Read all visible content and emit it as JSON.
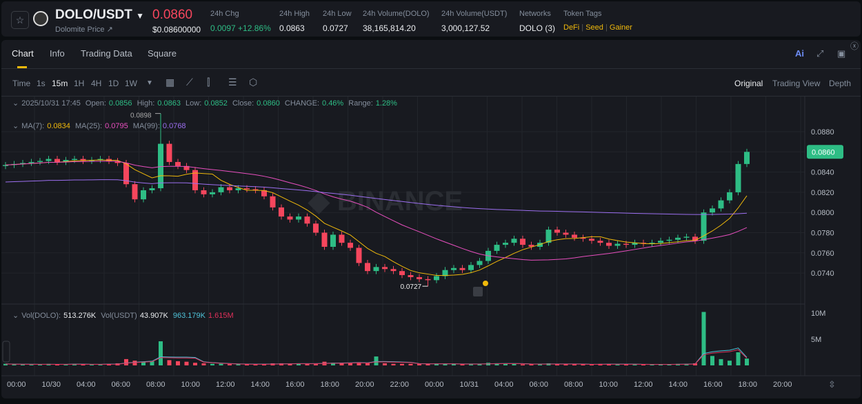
{
  "header": {
    "pair": "DOLO/USDT",
    "subtitle": "Dolomite Price ↗",
    "price": "0.0860",
    "price_usd": "$0.08600000",
    "stats": [
      {
        "label": "24h Chg",
        "value": "0.0097 +12.86%",
        "color": "g"
      },
      {
        "label": "24h High",
        "value": "0.0863"
      },
      {
        "label": "24h Low",
        "value": "0.0727"
      },
      {
        "label": "24h Volume(DOLO)",
        "value": "38,165,814.20"
      },
      {
        "label": "24h Volume(USDT)",
        "value": "3,000,127.52"
      },
      {
        "label": "Networks",
        "value": "DOLO (3)"
      }
    ],
    "tags_label": "Token Tags",
    "tags": [
      "DeFi",
      "Seed",
      "Gainer"
    ]
  },
  "tabs": [
    "Chart",
    "Info",
    "Trading Data",
    "Square"
  ],
  "toolbar": {
    "intervals": [
      "Time",
      "1s",
      "15m",
      "1H",
      "4H",
      "1D",
      "1W"
    ],
    "active": "15m",
    "views": [
      "Original",
      "Trading View",
      "Depth"
    ],
    "ai": "Ai"
  },
  "ohlc": {
    "date": "2025/10/31 17:45",
    "open_l": "Open:",
    "open": "0.0856",
    "high_l": "High:",
    "high": "0.0863",
    "low_l": "Low:",
    "low": "0.0852",
    "close_l": "Close:",
    "close": "0.0860",
    "change_l": "CHANGE:",
    "change": "0.46%",
    "range_l": "Range:",
    "range": "1.28%"
  },
  "ma": {
    "ma7_l": "MA(7):",
    "ma7": "0.0834",
    "ma25_l": "MA(25):",
    "ma25": "0.0795",
    "ma99_l": "MA(99):",
    "ma99": "0.0768"
  },
  "vol": {
    "dolo_l": "Vol(DOLO):",
    "dolo": "513.276K",
    "usdt_l": "Vol(USDT)",
    "usdt": "43.907K",
    "v2": "963.179K",
    "v3": "1.615M"
  },
  "watermark": "BINANCE",
  "chart_data": {
    "type": "candlestick",
    "interval": "15m",
    "price_ticks": [
      "0.0880",
      "0.0860",
      "0.0840",
      "0.0820",
      "0.0800",
      "0.0780",
      "0.0760",
      "0.0740"
    ],
    "ylim": [
      0.0725,
      0.0895
    ],
    "current_price": "0.0860",
    "high_marker": "0.0898",
    "low_marker": "0.0727",
    "closes": [
      0.0847,
      0.0848,
      0.0849,
      0.085,
      0.0851,
      0.0853,
      0.085,
      0.0852,
      0.0853,
      0.0851,
      0.0852,
      0.0853,
      0.0851,
      0.0849,
      0.0828,
      0.0813,
      0.0822,
      0.0824,
      0.0868,
      0.085,
      0.0846,
      0.0842,
      0.0822,
      0.0818,
      0.082,
      0.0825,
      0.0822,
      0.0824,
      0.0823,
      0.0822,
      0.0816,
      0.0805,
      0.0796,
      0.0793,
      0.0796,
      0.0789,
      0.078,
      0.0766,
      0.0778,
      0.077,
      0.0765,
      0.075,
      0.0742,
      0.0746,
      0.0744,
      0.0742,
      0.0738,
      0.0736,
      0.0734,
      0.0733,
      0.0737,
      0.0743,
      0.0745,
      0.0743,
      0.0748,
      0.0752,
      0.0762,
      0.0768,
      0.077,
      0.0774,
      0.0768,
      0.0766,
      0.077,
      0.0783,
      0.078,
      0.0778,
      0.0775,
      0.0774,
      0.0772,
      0.077,
      0.0767,
      0.0769,
      0.0768,
      0.077,
      0.0769,
      0.077,
      0.0772,
      0.0773,
      0.0775,
      0.0776,
      0.0772,
      0.08,
      0.0804,
      0.0812,
      0.082,
      0.0848,
      0.086
    ],
    "volumes_m": [
      0.3,
      0.2,
      0.2,
      0.2,
      0.2,
      0.3,
      0.2,
      0.2,
      0.3,
      0.2,
      0.2,
      0.2,
      0.3,
      0.4,
      1.2,
      0.9,
      0.7,
      0.8,
      4.6,
      1.0,
      0.8,
      0.7,
      0.5,
      0.4,
      0.3,
      0.3,
      0.3,
      0.2,
      0.2,
      0.2,
      0.3,
      0.4,
      0.4,
      0.3,
      0.3,
      0.3,
      0.4,
      0.7,
      0.5,
      0.4,
      0.5,
      0.6,
      0.5,
      1.7,
      0.4,
      0.3,
      0.3,
      0.3,
      0.4,
      0.3,
      0.3,
      0.3,
      0.3,
      0.2,
      0.3,
      0.3,
      0.5,
      0.4,
      0.3,
      0.3,
      0.2,
      0.2,
      0.3,
      0.4,
      0.3,
      0.2,
      0.2,
      0.2,
      0.2,
      0.3,
      0.3,
      0.2,
      0.2,
      0.2,
      0.2,
      0.2,
      0.2,
      0.2,
      0.3,
      0.3,
      0.4,
      10.2,
      1.8,
      1.2,
      0.9,
      2.5,
      1.3
    ],
    "vol_ticks": [
      "10M",
      "5M"
    ],
    "time_ticks": [
      "00:00",
      "10/30",
      "04:00",
      "06:00",
      "08:00",
      "10:00",
      "12:00",
      "14:00",
      "16:00",
      "18:00",
      "20:00",
      "22:00",
      "00:00",
      "10/31",
      "04:00",
      "06:00",
      "08:00",
      "10:00",
      "12:00",
      "14:00",
      "16:00",
      "18:00",
      "20:00"
    ],
    "colors": {
      "up": "#2ebd85",
      "down": "#f6465d",
      "ma7": "#f0b90b",
      "ma25": "#e84fbf",
      "ma99": "#9c6ff0",
      "vol_ma1": "#4fc3d9",
      "vol_ma2": "#e0305a"
    }
  }
}
